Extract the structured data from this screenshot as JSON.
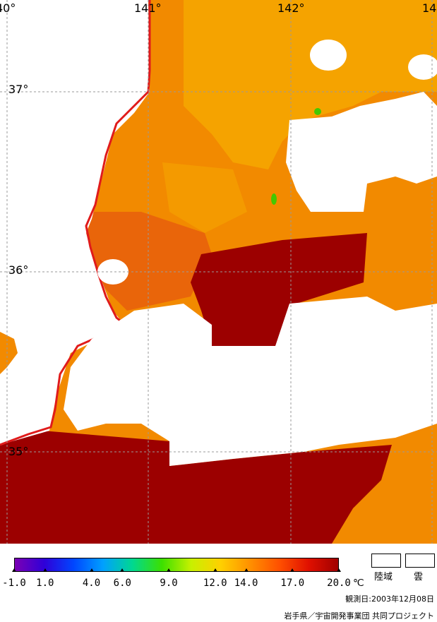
{
  "map": {
    "lon_labels": [
      "40°",
      "141°",
      "142°",
      "14"
    ],
    "lat_labels": [
      "37°",
      "36°",
      "35°"
    ]
  },
  "legend": {
    "tick_labels": [
      "-1.0",
      "1.0",
      "4.0",
      "6.0",
      "9.0",
      "12.0",
      "14.0",
      "17.0",
      "20.0"
    ],
    "tick_values": [
      -1.0,
      1.0,
      4.0,
      6.0,
      9.0,
      12.0,
      14.0,
      17.0,
      20.0
    ],
    "unit": "℃",
    "range": [
      -1.0,
      20.0
    ],
    "gradient_colors": [
      "#7b00b4",
      "#2f00d8",
      "#0046ff",
      "#00a0ff",
      "#00d890",
      "#3ce000",
      "#c8f000",
      "#ffd000",
      "#ff9000",
      "#ff5000",
      "#e01000",
      "#a00000"
    ],
    "land_label": "陸域",
    "cloud_label": "雲"
  },
  "observation_date": "観測日:2003年12月08日",
  "credit": "岩手県／宇宙開発事業団 共同プロジェクト",
  "colors": {
    "deep_red": "#9c0000",
    "orange": "#f28a00",
    "light_orange": "#f5a000",
    "coast_line": "#e01b1b",
    "cloud_land": "#ffffff"
  }
}
